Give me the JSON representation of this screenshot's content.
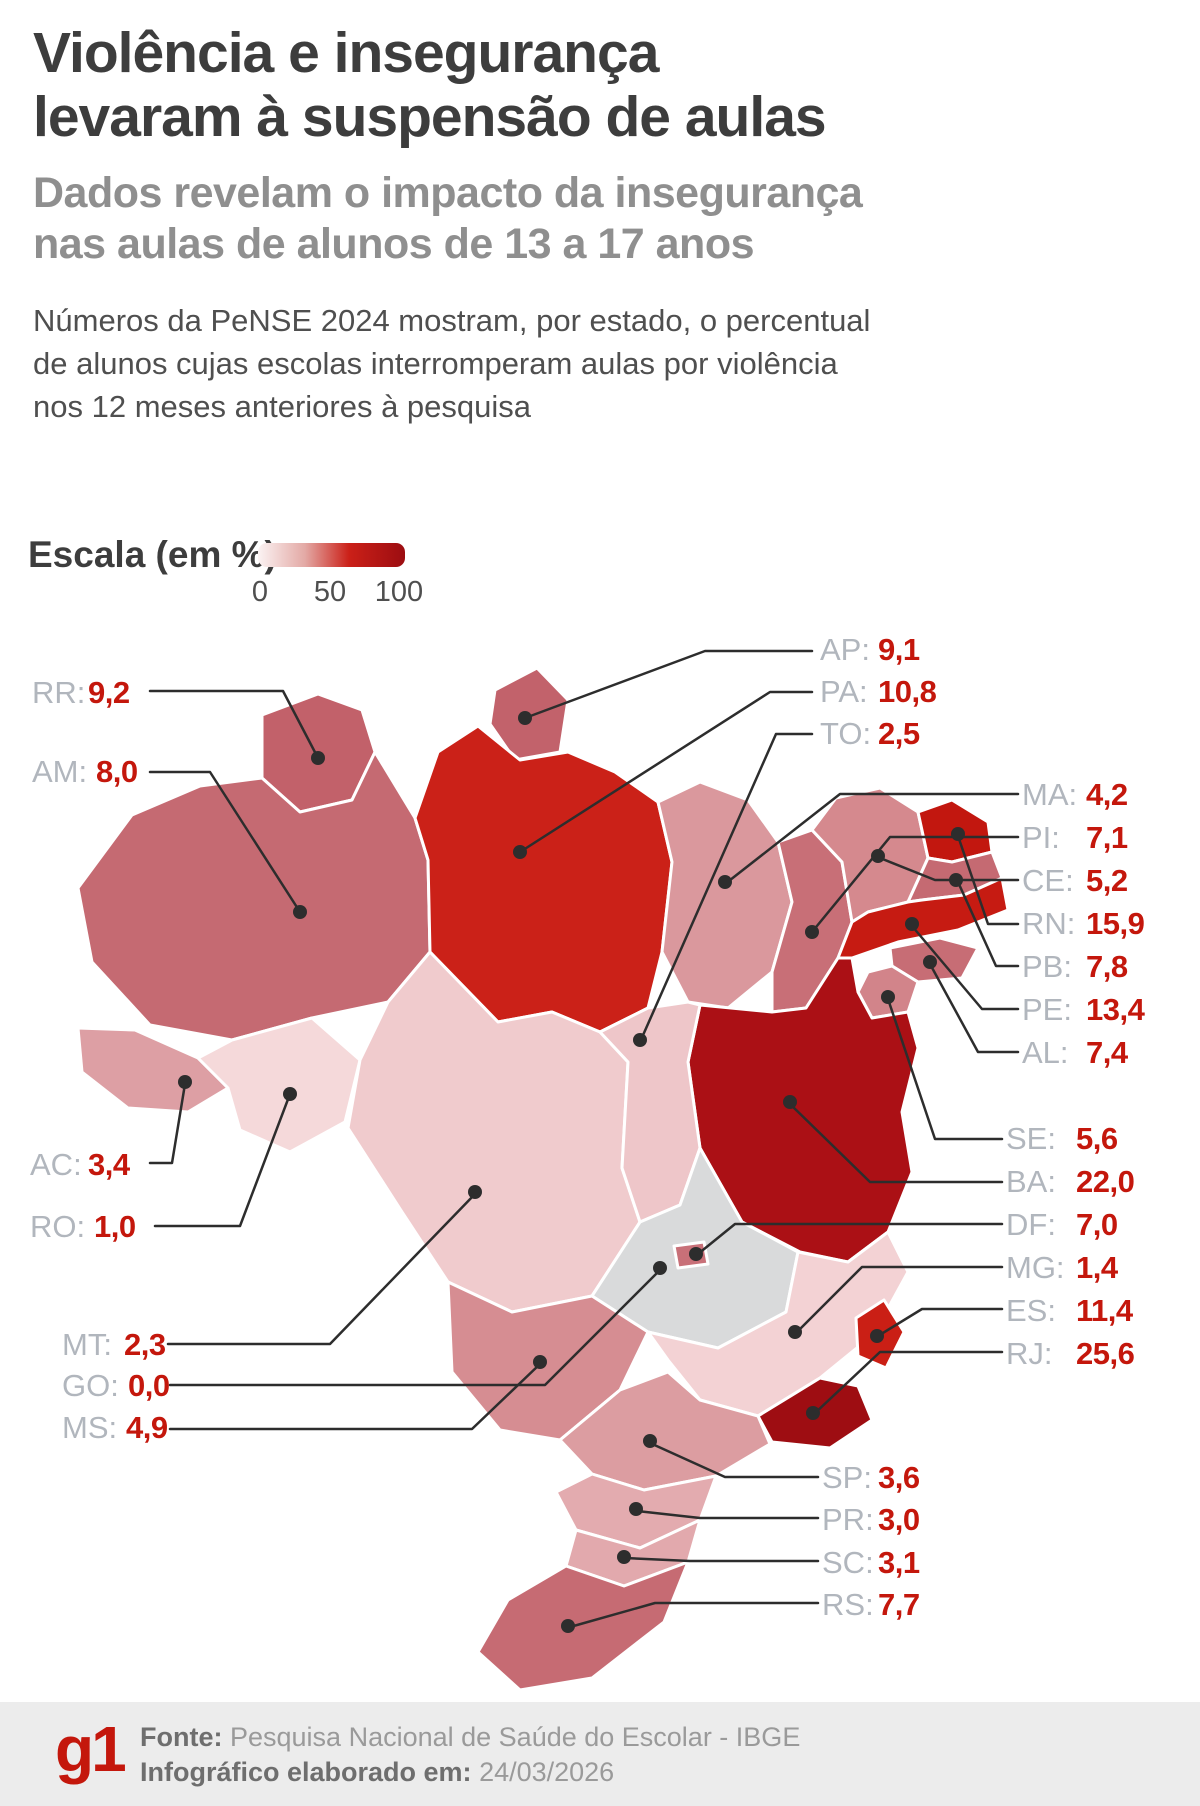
{
  "header": {
    "title_line1": "Violência e insegurança",
    "title_line2": "levaram à suspensão de aulas",
    "subtitle_line1": "Dados revelam o impacto da insegurança",
    "subtitle_line2": "nas aulas de alunos de 13 a 17 anos"
  },
  "intro": {
    "line1": "Números da PeNSE 2024 mostram, por estado, o percentual",
    "line2": "de alunos cujas escolas interromperam aulas por violência",
    "line3": "nos 12 meses anteriores à pesquisa"
  },
  "legend": {
    "label": "Escala (em %)",
    "ticks": [
      "0",
      "50",
      "100"
    ]
  },
  "chart_data": {
    "type": "heatmap",
    "subtype": "choropleth-map-brazil-states",
    "title": "Violência e insegurança levaram à suspensão de aulas",
    "metric": "Percentual de alunos cujas escolas interromperam aulas por violência (PeNSE 2024)",
    "unit": "%",
    "scale": {
      "label": "Escala (em %)",
      "min": 0,
      "mid": 50,
      "max": 100,
      "min_color": "#fbf3f3",
      "mid_color": "#cb2018",
      "max_color": "#9c0d11",
      "zero_color": "#d9dadb"
    },
    "states": [
      {
        "code": "RR",
        "value": "9,2",
        "value_num": 9.2,
        "color": "#c2616a"
      },
      {
        "code": "AM",
        "value": "8,0",
        "value_num": 8.0,
        "color": "#c56a72"
      },
      {
        "code": "AC",
        "value": "3,4",
        "value_num": 3.4,
        "color": "#dd9fa4"
      },
      {
        "code": "RO",
        "value": "1,0",
        "value_num": 1.0,
        "color": "#f5d9da"
      },
      {
        "code": "MT",
        "value": "2,3",
        "value_num": 2.3,
        "color": "#f0cbcd"
      },
      {
        "code": "GO",
        "value": "0,0",
        "value_num": 0.0,
        "color": "#d9dadb"
      },
      {
        "code": "MS",
        "value": "4,9",
        "value_num": 4.9,
        "color": "#d68d92"
      },
      {
        "code": "AP",
        "value": "9,1",
        "value_num": 9.1,
        "color": "#c2626b"
      },
      {
        "code": "PA",
        "value": "10,8",
        "value_num": 10.8,
        "color": "#cb2118"
      },
      {
        "code": "TO",
        "value": "2,5",
        "value_num": 2.5,
        "color": "#eec6c9"
      },
      {
        "code": "MA",
        "value": "4,2",
        "value_num": 4.2,
        "color": "#da989d"
      },
      {
        "code": "PI",
        "value": "7,1",
        "value_num": 7.1,
        "color": "#c86f77"
      },
      {
        "code": "CE",
        "value": "5,2",
        "value_num": 5.2,
        "color": "#d5898e"
      },
      {
        "code": "RN",
        "value": "15,9",
        "value_num": 15.9,
        "color": "#c2170f"
      },
      {
        "code": "PB",
        "value": "7,8",
        "value_num": 7.8,
        "color": "#c56a72"
      },
      {
        "code": "PE",
        "value": "13,4",
        "value_num": 13.4,
        "color": "#c61b12"
      },
      {
        "code": "AL",
        "value": "7,4",
        "value_num": 7.4,
        "color": "#c76d75"
      },
      {
        "code": "SE",
        "value": "5,6",
        "value_num": 5.6,
        "color": "#d2848a"
      },
      {
        "code": "BA",
        "value": "22,0",
        "value_num": 22.0,
        "color": "#ab1015"
      },
      {
        "code": "DF",
        "value": "7,0",
        "value_num": 7.0,
        "color": "#c87078"
      },
      {
        "code": "MG",
        "value": "1,4",
        "value_num": 1.4,
        "color": "#f3d2d4"
      },
      {
        "code": "ES",
        "value": "11,4",
        "value_num": 11.4,
        "color": "#ca1f15"
      },
      {
        "code": "RJ",
        "value": "25,6",
        "value_num": 25.6,
        "color": "#9e0d12"
      },
      {
        "code": "SP",
        "value": "3,6",
        "value_num": 3.6,
        "color": "#dc9da1"
      },
      {
        "code": "PR",
        "value": "3,0",
        "value_num": 3.0,
        "color": "#e3abaf"
      },
      {
        "code": "SC",
        "value": "3,1",
        "value_num": 3.1,
        "color": "#e2a9ad"
      },
      {
        "code": "RS",
        "value": "7,7",
        "value_num": 7.7,
        "color": "#c66b73"
      }
    ]
  },
  "footer": {
    "logo": "g1",
    "source_label": "Fonte:",
    "source": "Pesquisa Nacional de Saúde do Escolar - IBGE",
    "elaborated_label": "Infográfico elaborado em:",
    "date": "24/03/2026"
  }
}
